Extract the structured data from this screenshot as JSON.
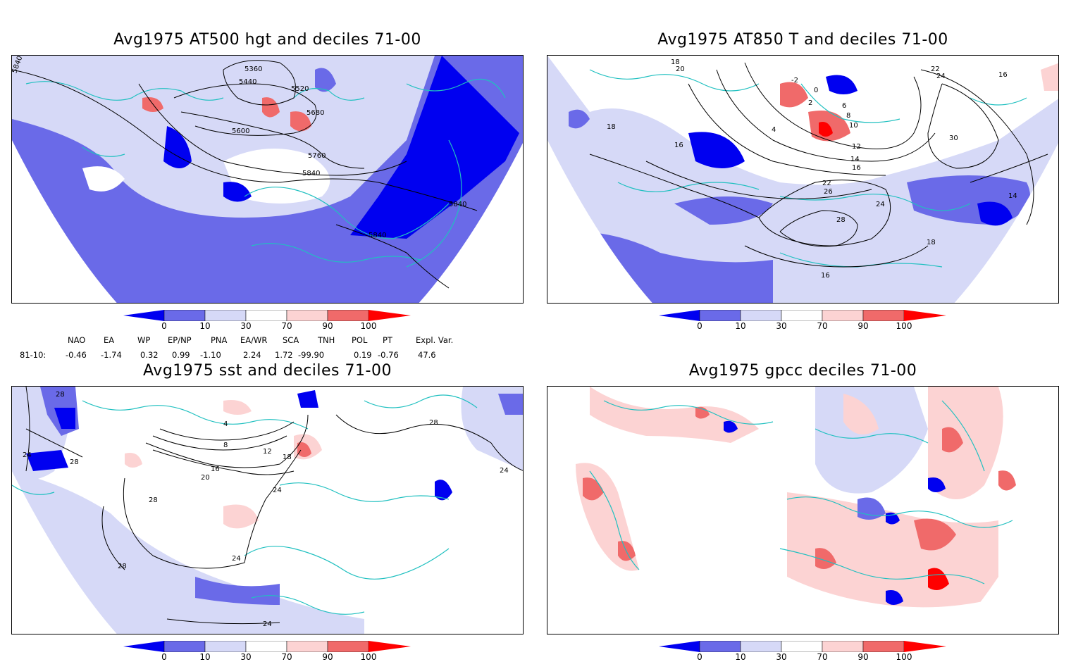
{
  "colors": {
    "d0_10": "#0000f0",
    "d10_30": "#6a6ae8",
    "d30_50": "#d6d9f7",
    "d70_90": "#fcd3d3",
    "d90_100": "#f06a6a",
    "d100": "#ff0000",
    "coast": "#20c0c0",
    "contour": "#000000"
  },
  "panels": [
    {
      "title": "Avg1975 AT500 hgt and deciles 71-00",
      "contour_labels": [
        "5360",
        "5440",
        "5520",
        "5600",
        "5680",
        "5760",
        "5840",
        "5840",
        "5840",
        "5840"
      ]
    },
    {
      "title": "Avg1975 AT850 T and deciles 71-00",
      "contour_labels": [
        "18",
        "20",
        "22",
        "-2",
        "0",
        "2",
        "4",
        "6",
        "8",
        "10",
        "12",
        "14",
        "16",
        "16",
        "18",
        "22",
        "24",
        "26",
        "28",
        "30",
        "24",
        "16",
        "14",
        "18",
        "16"
      ]
    },
    {
      "title": "Avg1975 sst and deciles 71-00",
      "contour_labels": [
        "28",
        "24",
        "28",
        "4",
        "8",
        "12",
        "16",
        "20",
        "24",
        "18",
        "28",
        "24",
        "28",
        "28",
        "24",
        "24"
      ]
    },
    {
      "title": "Avg1975 gpcc deciles 71-00",
      "contour_labels": []
    }
  ],
  "colorbar": {
    "ticks": [
      "0",
      "10",
      "30",
      "70",
      "90",
      "100"
    ]
  },
  "indices": {
    "headers": [
      "NAO",
      "EA",
      "WP",
      "EP/NP",
      "PNA",
      "EA/WR",
      "SCA",
      "TNH",
      "POL",
      "PT",
      "Expl. Var."
    ],
    "row_label": "81-10:",
    "values": [
      "-0.46",
      "-1.74",
      "0.32",
      "0.99",
      "-1.10",
      "2.24",
      "1.72",
      "-99.90",
      "0.19",
      "-0.76",
      "47.6"
    ]
  }
}
